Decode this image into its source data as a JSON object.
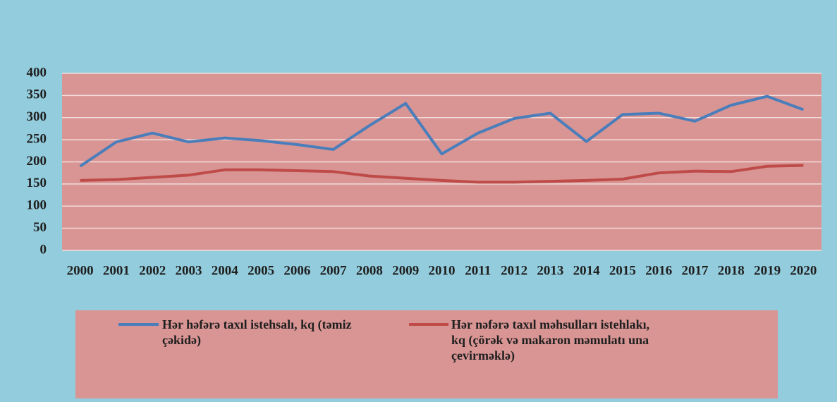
{
  "chart_data": {
    "type": "line",
    "categories": [
      "2000",
      "2001",
      "2002",
      "2003",
      "2004",
      "2005",
      "2006",
      "2007",
      "2008",
      "2009",
      "2010",
      "2011",
      "2012",
      "2013",
      "2014",
      "2015",
      "2016",
      "2017",
      "2018",
      "2019",
      "2020"
    ],
    "series": [
      {
        "name": "Hər həfərə taxıl istehsalı, kq (təmiz çəkidə)",
        "color": "#4a7ebb",
        "values": [
          190,
          245,
          265,
          245,
          254,
          248,
          239,
          228,
          282,
          332,
          218,
          265,
          298,
          310,
          246,
          307,
          310,
          292,
          328,
          348,
          318
        ]
      },
      {
        "name": "Hər nəfərə taxıl məhsulları istehlakı, kq (çörək və makaron məmulatı una çevirməklə)",
        "color": "#be4b48",
        "values": [
          158,
          160,
          165,
          170,
          182,
          182,
          180,
          178,
          168,
          163,
          158,
          154,
          154,
          156,
          158,
          161,
          175,
          179,
          178,
          190,
          192
        ]
      }
    ],
    "ylim": [
      0,
      400
    ],
    "yticks": [
      0,
      50,
      100,
      150,
      200,
      250,
      300,
      350,
      400
    ],
    "grid": true
  }
}
